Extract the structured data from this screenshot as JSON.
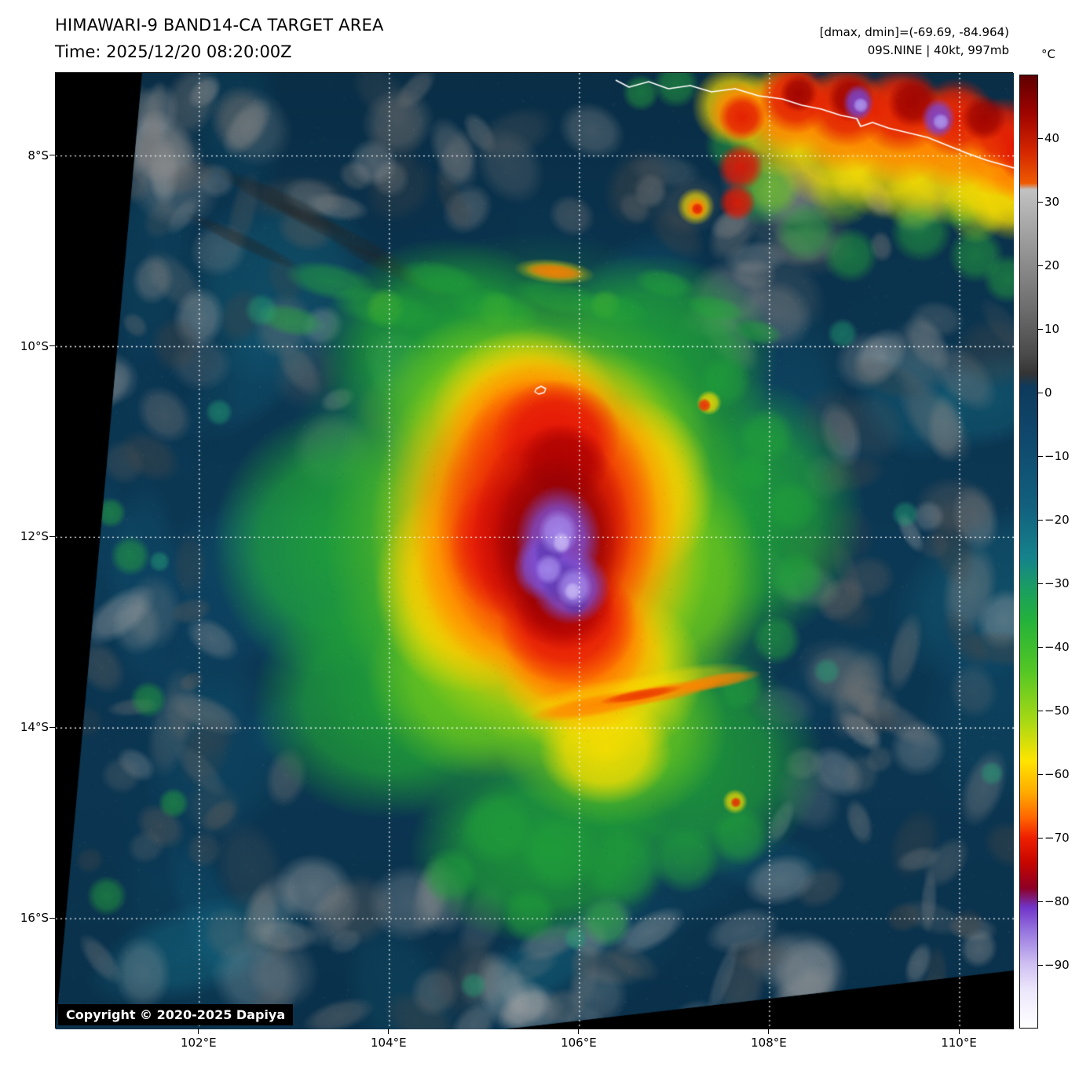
{
  "header": {
    "title": "HIMAWARI-9 BAND14-CA TARGET AREA",
    "time": "Time: 2025/12/20 08:20:00Z",
    "dmax_dmin": "[dmax, dmin]=(-69.69, -84.964)",
    "storm_info": "09S.NINE | 40kt, 997mb"
  },
  "map": {
    "copyright": "Copyright © 2020-2025 Dapiya"
  },
  "axes": {
    "lat_range": [
      -7.13,
      -17.16
    ],
    "lon_range": [
      100.49,
      110.57
    ],
    "lat_ticks": [
      {
        "label": "8°S",
        "value": -8
      },
      {
        "label": "10°S",
        "value": -10
      },
      {
        "label": "12°S",
        "value": -12
      },
      {
        "label": "14°S",
        "value": -14
      },
      {
        "label": "16°S",
        "value": -16
      }
    ],
    "lon_ticks": [
      {
        "label": "102°E",
        "value": 102
      },
      {
        "label": "104°E",
        "value": 104
      },
      {
        "label": "106°E",
        "value": 106
      },
      {
        "label": "108°E",
        "value": 108
      },
      {
        "label": "110°E",
        "value": 110
      }
    ]
  },
  "colorbar": {
    "unit": "°C",
    "vmax": 50,
    "vmin": -100,
    "tick_values": [
      40,
      30,
      20,
      10,
      0,
      -10,
      -20,
      -30,
      -40,
      -50,
      -60,
      -70,
      -80,
      -90
    ],
    "tick_labels": [
      "40",
      "30",
      "20",
      "10",
      "0",
      "−10",
      "−20",
      "−30",
      "−40",
      "−50",
      "−60",
      "−70",
      "−80",
      "−90"
    ],
    "gradient_stops": [
      [
        50,
        "#5e0000"
      ],
      [
        44,
        "#9e0400"
      ],
      [
        38,
        "#d42600"
      ],
      [
        33,
        "#ef5a00"
      ],
      [
        32,
        "#c2c2c2"
      ],
      [
        24,
        "#9c9c9c"
      ],
      [
        14,
        "#707070"
      ],
      [
        6,
        "#4a4a4a"
      ],
      [
        3,
        "#343434"
      ],
      [
        1,
        "#0e3a5c"
      ],
      [
        -8,
        "#0f4a6e"
      ],
      [
        -18,
        "#12607e"
      ],
      [
        -26,
        "#15838c"
      ],
      [
        -31,
        "#1a9e60"
      ],
      [
        -36,
        "#25b23a"
      ],
      [
        -44,
        "#55c724"
      ],
      [
        -52,
        "#abd914"
      ],
      [
        -58,
        "#ffe400"
      ],
      [
        -63,
        "#ffaa00"
      ],
      [
        -67,
        "#ff6400"
      ],
      [
        -70,
        "#ef2000"
      ],
      [
        -74,
        "#c60600"
      ],
      [
        -78,
        "#8e0024"
      ],
      [
        -81,
        "#7034c8"
      ],
      [
        -85,
        "#9878e0"
      ],
      [
        -90,
        "#cfc0f2"
      ],
      [
        -94,
        "#ece6fb"
      ],
      [
        -100,
        "#ffffff"
      ]
    ]
  }
}
